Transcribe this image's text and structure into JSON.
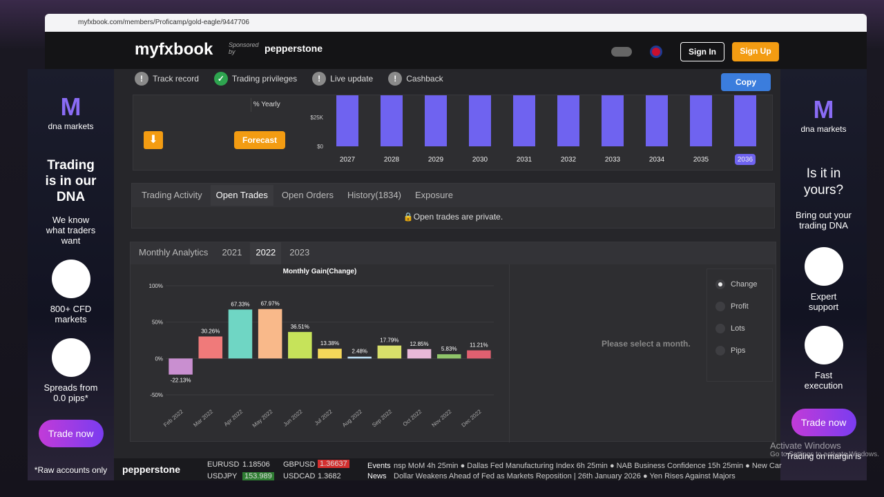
{
  "browser": {
    "url": "myfxbook.com/members/Proficamp/gold-eagle/9447706"
  },
  "header": {
    "logo": "myfxbook",
    "sponsored": "Sponsored by",
    "sponsor": "pepperstone",
    "sign_in": "Sign In",
    "sign_up": "Sign Up"
  },
  "badges": [
    "Track record",
    "Trading privileges",
    "Live update",
    "Cashback"
  ],
  "copy": "Copy",
  "projection": {
    "unit": "% Yearly",
    "forecast": "Forecast",
    "color": "#6f63f0",
    "categories": [
      "2027",
      "2028",
      "2029",
      "2030",
      "2031",
      "2032",
      "2033",
      "2034",
      "2035",
      "2036"
    ],
    "values": [
      44000,
      44000,
      44000,
      44000,
      44000,
      44000,
      44000,
      44000,
      44000,
      44000
    ],
    "yticks": [
      {
        "value": 0,
        "label": "$0"
      },
      {
        "value": 25000,
        "label": "$25K"
      }
    ]
  },
  "trade_tabs": [
    "Trading Activity",
    "Open Trades",
    "Open Orders",
    "History(1834)",
    "Exposure"
  ],
  "trades_message": "Open trades are private.",
  "analytics_tabs": [
    "Monthly Analytics",
    "2021",
    "2022",
    "2023"
  ],
  "chart": {
    "type": "bar",
    "title": "Monthly Gain(Change)",
    "categories": [
      "Feb 2022",
      "Mar 2022",
      "Apr 2022",
      "May 2022",
      "Jun 2022",
      "Jul 2022",
      "Aug 2022",
      "Sep 2022",
      "Oct 2022",
      "Nov 2022",
      "Dec 2022"
    ],
    "values": [
      -22.13,
      30.26,
      67.33,
      67.97,
      36.51,
      13.38,
      2.48,
      17.79,
      12.85,
      5.83,
      11.21
    ],
    "value_labels": [
      "-22.13%",
      "30.26%",
      "67.33%",
      "67.97%",
      "36.51%",
      "13.38%",
      "2.48%",
      "17.79%",
      "12.85%",
      "5.83%",
      "11.21%"
    ],
    "colors": [
      "#c98fd0",
      "#f07a7a",
      "#6fd6c4",
      "#f9b98a",
      "#c6e35a",
      "#f5d85a",
      "#bde0f5",
      "#d8e06a",
      "#e8b8d8",
      "#8fc56a",
      "#e06070"
    ],
    "ylim": [
      -50,
      100
    ],
    "yticks": [
      {
        "value": -50,
        "label": "-50%"
      },
      {
        "value": 0,
        "label": "0%"
      },
      {
        "value": 50,
        "label": "50%"
      },
      {
        "value": 100,
        "label": "100%"
      }
    ],
    "grid": true
  },
  "select_message": "Please select a month.",
  "options": [
    "Change",
    "Profit",
    "Lots",
    "Pips"
  ],
  "left_ad": {
    "brand": "dna markets",
    "headline": "Trading is in our DNA",
    "sub": "We know what traders want",
    "feature1": "800+ CFD markets",
    "feature2": "Spreads from 0.0 pips*",
    "cta": "Trade now",
    "note": "*Raw accounts only"
  },
  "right_ad": {
    "brand": "dna markets",
    "headline": "Is it in yours?",
    "sub": "Bring out your trading DNA",
    "feature1": "Expert support",
    "feature2": "Fast execution",
    "cta": "Trade now",
    "note": "Trading on margin is"
  },
  "ticker": {
    "brand": "pepperstone",
    "quotes": [
      {
        "pair": "EURUSD",
        "price": "1.18506"
      },
      {
        "pair": "GBPUSD",
        "price": "1.36637"
      },
      {
        "pair": "USDJPY",
        "price": "153.989"
      },
      {
        "pair": "USDCAD",
        "price": "1.3682"
      }
    ],
    "events_label": "Events",
    "events": "nsp MoM  4h 25min ● Dallas Fed Manufacturing Index  6h 25min ● NAB Business Confidence  15h 25min ● New Car",
    "news_label": "News",
    "news": "Dollar Weakens Ahead of Fed as Markets Reposition | 26th January 2026 ● Yen Rises Against Majors"
  },
  "watermark": {
    "title": "Activate Windows",
    "sub": "Go to Settings to activate Windows."
  }
}
